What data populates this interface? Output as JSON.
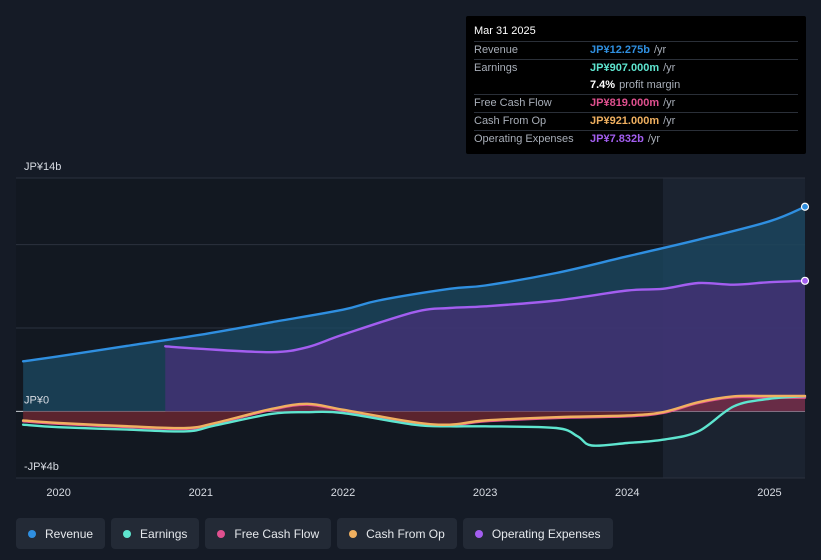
{
  "tooltip": {
    "date": "Mar 31 2025",
    "rows": [
      {
        "label": "Revenue",
        "value": "JP¥12.275b",
        "unit": "/yr",
        "color": "#2f8fe0"
      },
      {
        "label": "Earnings",
        "value": "JP¥907.000m",
        "unit": "/yr",
        "color": "#5ee5cf"
      },
      {
        "label": "Free Cash Flow",
        "value": "JP¥819.000m",
        "unit": "/yr",
        "color": "#e0508f"
      },
      {
        "label": "Cash From Op",
        "value": "JP¥921.000m",
        "unit": "/yr",
        "color": "#f0b060"
      },
      {
        "label": "Operating Expenses",
        "value": "JP¥7.832b",
        "unit": "/yr",
        "color": "#a35ef0"
      }
    ],
    "margin_value": "7.4%",
    "margin_label": "profit margin"
  },
  "legend": [
    {
      "label": "Revenue",
      "color": "#2f8fe0",
      "icon": "dot-icon"
    },
    {
      "label": "Earnings",
      "color": "#5ee5cf",
      "icon": "dot-icon"
    },
    {
      "label": "Free Cash Flow",
      "color": "#e0508f",
      "icon": "dot-icon"
    },
    {
      "label": "Cash From Op",
      "color": "#f0b060",
      "icon": "dot-icon"
    },
    {
      "label": "Operating Expenses",
      "color": "#a35ef0",
      "icon": "dot-icon"
    }
  ],
  "chart_data": {
    "type": "area",
    "title": "",
    "xlabel": "",
    "ylabel": "",
    "ylim": [
      -4,
      14
    ],
    "xlim": [
      2019.7,
      2025.25
    ],
    "y_tick_labels": [
      {
        "value": 14,
        "label": "JP¥14b"
      },
      {
        "value": 0,
        "label": "JP¥0"
      },
      {
        "value": -4,
        "label": "-JP¥4b"
      }
    ],
    "x_tick_labels": [
      {
        "value": 2020,
        "label": "2020"
      },
      {
        "value": 2021,
        "label": "2021"
      },
      {
        "value": 2022,
        "label": "2022"
      },
      {
        "value": 2023,
        "label": "2023"
      },
      {
        "value": 2024,
        "label": "2024"
      },
      {
        "value": 2025,
        "label": "2025"
      }
    ],
    "gridlines": [
      14,
      10,
      5,
      0,
      -4
    ],
    "highlight_range": [
      2024.25,
      2025.25
    ],
    "series": [
      {
        "name": "Revenue",
        "color": "#2f8fe0",
        "fill": "#1c4a63",
        "x": [
          2019.75,
          2020.0,
          2020.5,
          2021.0,
          2021.5,
          2022.0,
          2022.25,
          2022.75,
          2023.0,
          2023.5,
          2024.0,
          2024.5,
          2025.0,
          2025.25
        ],
        "y": [
          3.0,
          3.3,
          3.95,
          4.6,
          5.35,
          6.1,
          6.65,
          7.35,
          7.55,
          8.3,
          9.3,
          10.3,
          11.4,
          12.275
        ]
      },
      {
        "name": "Operating Expenses",
        "color": "#a35ef0",
        "fill": "#4a2f7a",
        "x": [
          2020.75,
          2021.0,
          2021.5,
          2021.75,
          2022.0,
          2022.5,
          2022.75,
          2023.0,
          2023.5,
          2024.0,
          2024.25,
          2024.5,
          2024.75,
          2025.0,
          2025.25
        ],
        "y": [
          3.9,
          3.75,
          3.55,
          3.85,
          4.6,
          5.95,
          6.2,
          6.3,
          6.65,
          7.25,
          7.35,
          7.7,
          7.6,
          7.75,
          7.832
        ]
      },
      {
        "name": "Earnings",
        "color": "#5ee5cf",
        "x": [
          2019.75,
          2020.0,
          2020.5,
          2020.9,
          2021.1,
          2021.5,
          2021.75,
          2022.0,
          2022.5,
          2022.75,
          2023.0,
          2023.5,
          2023.65,
          2023.75,
          2024.0,
          2024.25,
          2024.5,
          2024.75,
          2025.0,
          2025.25
        ],
        "y": [
          -0.8,
          -0.95,
          -1.1,
          -1.2,
          -0.85,
          -0.15,
          -0.05,
          -0.1,
          -0.8,
          -0.9,
          -0.9,
          -1.0,
          -1.5,
          -2.05,
          -1.9,
          -1.7,
          -1.2,
          0.3,
          0.75,
          0.907
        ]
      },
      {
        "name": "Free Cash Flow",
        "color": "#e0508f",
        "fill": "#7a2a35",
        "x": [
          2019.75,
          2020.0,
          2020.5,
          2020.9,
          2021.1,
          2021.5,
          2021.75,
          2022.0,
          2022.5,
          2022.75,
          2023.0,
          2023.5,
          2024.0,
          2024.25,
          2024.5,
          2024.75,
          2025.0,
          2025.25
        ],
        "y": [
          -0.6,
          -0.75,
          -0.95,
          -1.05,
          -0.75,
          0.1,
          0.4,
          0.05,
          -0.7,
          -0.85,
          -0.6,
          -0.4,
          -0.3,
          -0.1,
          0.5,
          0.85,
          0.82,
          0.819
        ]
      },
      {
        "name": "Cash From Op",
        "color": "#f0b060",
        "x": [
          2019.75,
          2020.0,
          2020.5,
          2020.9,
          2021.1,
          2021.5,
          2021.75,
          2022.0,
          2022.5,
          2022.75,
          2023.0,
          2023.5,
          2024.0,
          2024.25,
          2024.5,
          2024.75,
          2025.0,
          2025.25
        ],
        "y": [
          -0.55,
          -0.7,
          -0.9,
          -1.0,
          -0.7,
          0.15,
          0.45,
          0.1,
          -0.65,
          -0.8,
          -0.55,
          -0.35,
          -0.25,
          -0.05,
          0.55,
          0.9,
          0.92,
          0.921
        ]
      }
    ]
  }
}
